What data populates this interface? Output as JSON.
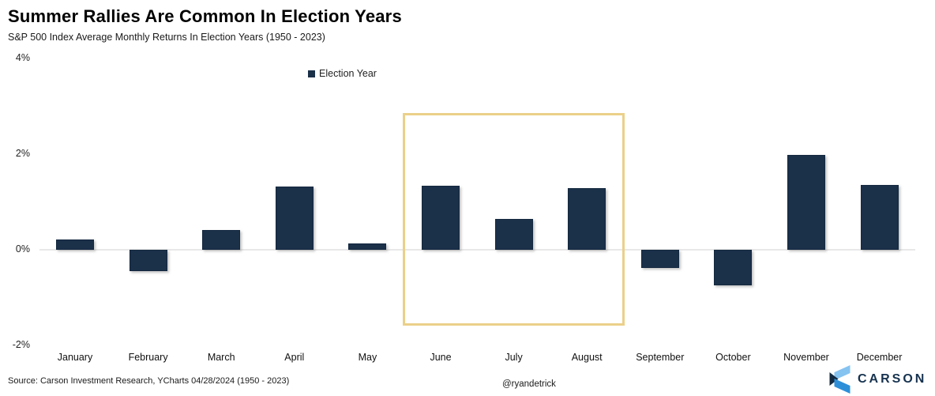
{
  "header": {
    "title": "Summer Rallies Are Common In Election Years",
    "subtitle": "S&P 500 Index Average Monthly Returns In Election Years (1950 - 2023)"
  },
  "chart_data": {
    "type": "bar",
    "title": "Summer Rallies Are Common In Election Years",
    "subtitle": "S&P 500 Index Average Monthly Returns In Election Years (1950 - 2023)",
    "legend": [
      "Election Year"
    ],
    "legend_position": "top-center",
    "categories": [
      "January",
      "February",
      "March",
      "April",
      "May",
      "June",
      "July",
      "August",
      "September",
      "October",
      "November",
      "December"
    ],
    "series": [
      {
        "name": "Election Year",
        "values": [
          0.21,
          -0.45,
          0.42,
          1.32,
          0.13,
          1.34,
          0.65,
          1.29,
          -0.38,
          -0.74,
          1.98,
          1.36
        ]
      }
    ],
    "y_ticks": [
      {
        "label": "4%",
        "value": 4
      },
      {
        "label": "2%",
        "value": 2
      },
      {
        "label": "0%",
        "value": 0
      },
      {
        "label": "-2%",
        "value": -2
      }
    ],
    "ylim": [
      -2,
      4
    ],
    "xlabel": "",
    "ylabel": "",
    "grid": "zero-line-only",
    "bar_color": "#1B3049",
    "highlight": {
      "months": [
        "June",
        "July",
        "August"
      ],
      "border_color": "#EBD089"
    }
  },
  "footer": {
    "source": "Source: Carson Investment Research, YCharts 04/28/2024 (1950 - 2023)",
    "handle": "@ryandetrick",
    "brand": "CARSON",
    "brand_colors": {
      "navy": "#16324F",
      "blue": "#2E8FD9",
      "light_blue": "#85C3F1"
    }
  }
}
